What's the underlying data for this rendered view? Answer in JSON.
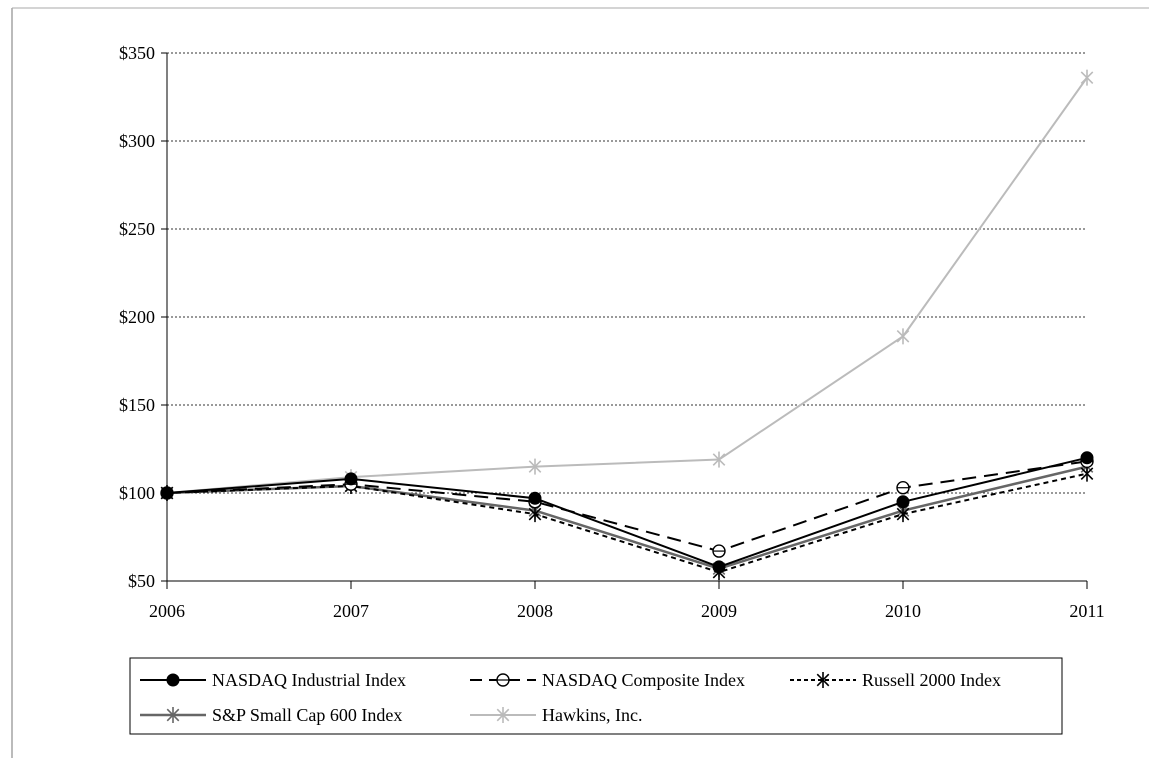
{
  "chart_data": {
    "type": "line",
    "title": "",
    "xlabel": "",
    "ylabel": "",
    "x": [
      "2006",
      "2007",
      "2008",
      "2009",
      "2010",
      "2011"
    ],
    "ylim": [
      50,
      350
    ],
    "yticks": [
      50,
      100,
      150,
      200,
      250,
      300,
      350
    ],
    "ytick_labels": [
      "$50",
      "$100",
      "$150",
      "$200",
      "$250",
      "$300",
      "$350"
    ],
    "grid": "horizontal dotted",
    "legend_position": "bottom",
    "series": [
      {
        "name": "NASDAQ Industrial Index",
        "values": [
          100,
          108,
          97,
          58,
          95,
          120
        ],
        "color": "#000000",
        "dash": "solid",
        "marker": "filled-circle"
      },
      {
        "name": "NASDAQ Composite Index",
        "values": [
          100,
          105,
          95,
          67,
          103,
          118
        ],
        "color": "#000000",
        "dash": "long-dash",
        "marker": "open-circle"
      },
      {
        "name": "Russell 2000 Index",
        "values": [
          100,
          104,
          88,
          55,
          88,
          111
        ],
        "color": "#000000",
        "dash": "short-dash",
        "marker": "asterisk"
      },
      {
        "name": "S&P Small Cap 600 Index",
        "values": [
          100,
          104,
          90,
          57,
          90,
          115
        ],
        "color": "#666666",
        "dash": "solid",
        "marker": "asterisk"
      },
      {
        "name": "Hawkins, Inc.",
        "values": [
          100,
          109,
          115,
          119,
          189,
          336
        ],
        "color": "#bbbbbb",
        "dash": "solid",
        "marker": "asterisk"
      }
    ]
  }
}
